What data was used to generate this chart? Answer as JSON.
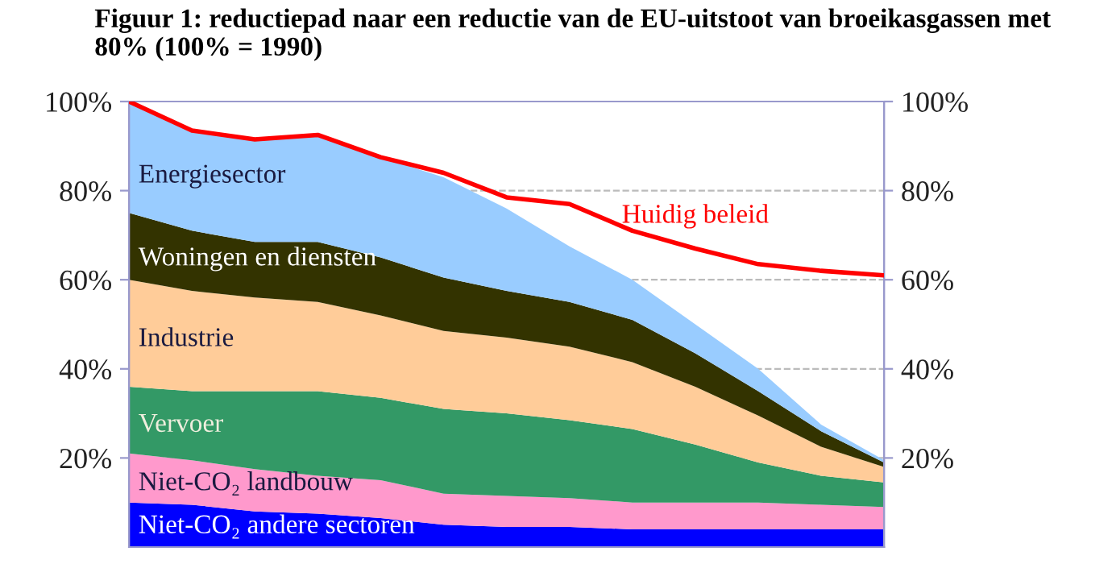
{
  "chart_data": {
    "type": "area",
    "title": "Figuur 1: reductiepad naar een reductie van de EU-uitstoot van broeikasgassen met 80% (100% = 1990)",
    "categories": [
      null,
      null,
      null,
      null,
      null,
      null,
      null,
      null,
      null,
      null,
      null,
      null,
      null
    ],
    "stacked": true,
    "grid": "y",
    "legend": false,
    "ylim": [
      0,
      100
    ],
    "yticks": [
      {
        "value": 20,
        "label": "20%"
      },
      {
        "value": 40,
        "label": "40%"
      },
      {
        "value": 60,
        "label": "60%"
      },
      {
        "value": 80,
        "label": "80%"
      },
      {
        "value": 100,
        "label": "100%"
      }
    ],
    "y2lim": [
      0,
      100
    ],
    "y2ticks": [
      {
        "value": 20,
        "label": "20%"
      },
      {
        "value": 40,
        "label": "40%"
      },
      {
        "value": 60,
        "label": "60%"
      },
      {
        "value": 80,
        "label": "80%"
      },
      {
        "value": 100,
        "label": "100%"
      }
    ],
    "series": [
      {
        "name": "Niet-CO₂ andere sectoren",
        "color": "#0000ff",
        "values": [
          10,
          9.5,
          8,
          7.5,
          6.5,
          5,
          4.5,
          4.5,
          4,
          4,
          4,
          4,
          4
        ]
      },
      {
        "name": "Niet-CO₂ landbouw",
        "color": "#ff99cc",
        "values": [
          11,
          10,
          9.5,
          8.5,
          8.5,
          7,
          7,
          6.5,
          6,
          6,
          6,
          5.5,
          5
        ]
      },
      {
        "name": "Vervoer",
        "color": "#339966",
        "values": [
          15,
          15.5,
          17.5,
          19,
          18.5,
          19,
          18.5,
          17.5,
          16.5,
          13,
          9,
          6.5,
          5.5
        ]
      },
      {
        "name": "Industrie",
        "color": "#ffcc99",
        "values": [
          24,
          22.5,
          21,
          20,
          18.5,
          17.5,
          17,
          16.5,
          15,
          13,
          10.5,
          6.5,
          3.5
        ]
      },
      {
        "name": "Woningen en diensten",
        "color": "#333300",
        "values": [
          15,
          13.5,
          12.5,
          13.5,
          13,
          12,
          10.5,
          10,
          9.5,
          7.5,
          5.5,
          3.5,
          1
        ]
      },
      {
        "name": "Energiesector",
        "color": "#99ccff",
        "values": [
          25,
          22.5,
          23,
          24,
          22.5,
          22.5,
          18.5,
          12.5,
          9,
          6.5,
          5,
          1.5,
          0.5
        ]
      },
      {
        "name": "Huidig beleid",
        "type": "line",
        "color": "#ff0000",
        "axis": "y2",
        "values": [
          100,
          93.5,
          91.5,
          92.5,
          87.5,
          84,
          78.5,
          77,
          71,
          67,
          63.5,
          62,
          61
        ]
      }
    ]
  }
}
